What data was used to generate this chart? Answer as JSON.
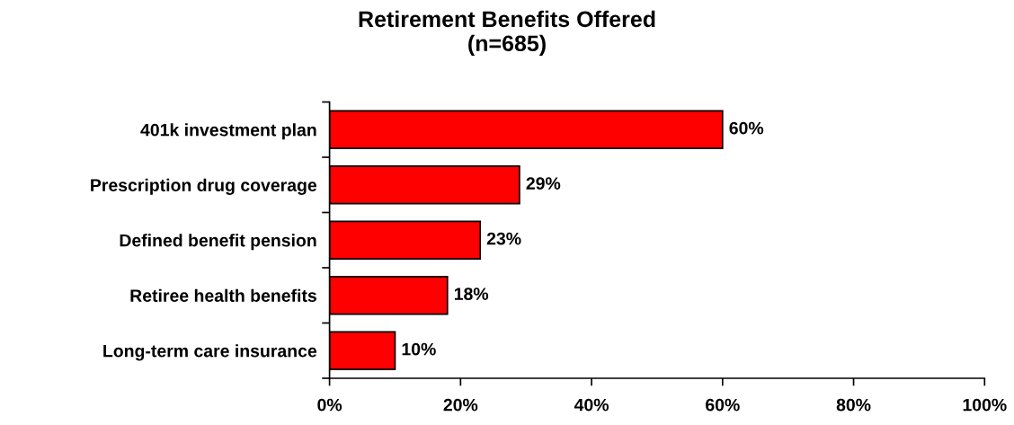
{
  "chart_data": {
    "type": "bar",
    "orientation": "horizontal",
    "title": "Retirement Benefits Offered\n(n=685)",
    "categories": [
      "401k investment plan",
      "Prescription drug coverage",
      "Defined benefit pension",
      "Retiree health benefits",
      "Long-term care insurance"
    ],
    "values": [
      60,
      29,
      23,
      18,
      10
    ],
    "value_labels": [
      "60%",
      "29%",
      "23%",
      "18%",
      "10%"
    ],
    "color": "#ff0000",
    "xlim": [
      0,
      100
    ],
    "xticks": [
      {
        "value": 0,
        "label": "0%"
      },
      {
        "value": 20,
        "label": "20%"
      },
      {
        "value": 40,
        "label": "40%"
      },
      {
        "value": 60,
        "label": "60%"
      },
      {
        "value": 80,
        "label": "80%"
      },
      {
        "value": 100,
        "label": "100%"
      }
    ],
    "grid": false
  }
}
